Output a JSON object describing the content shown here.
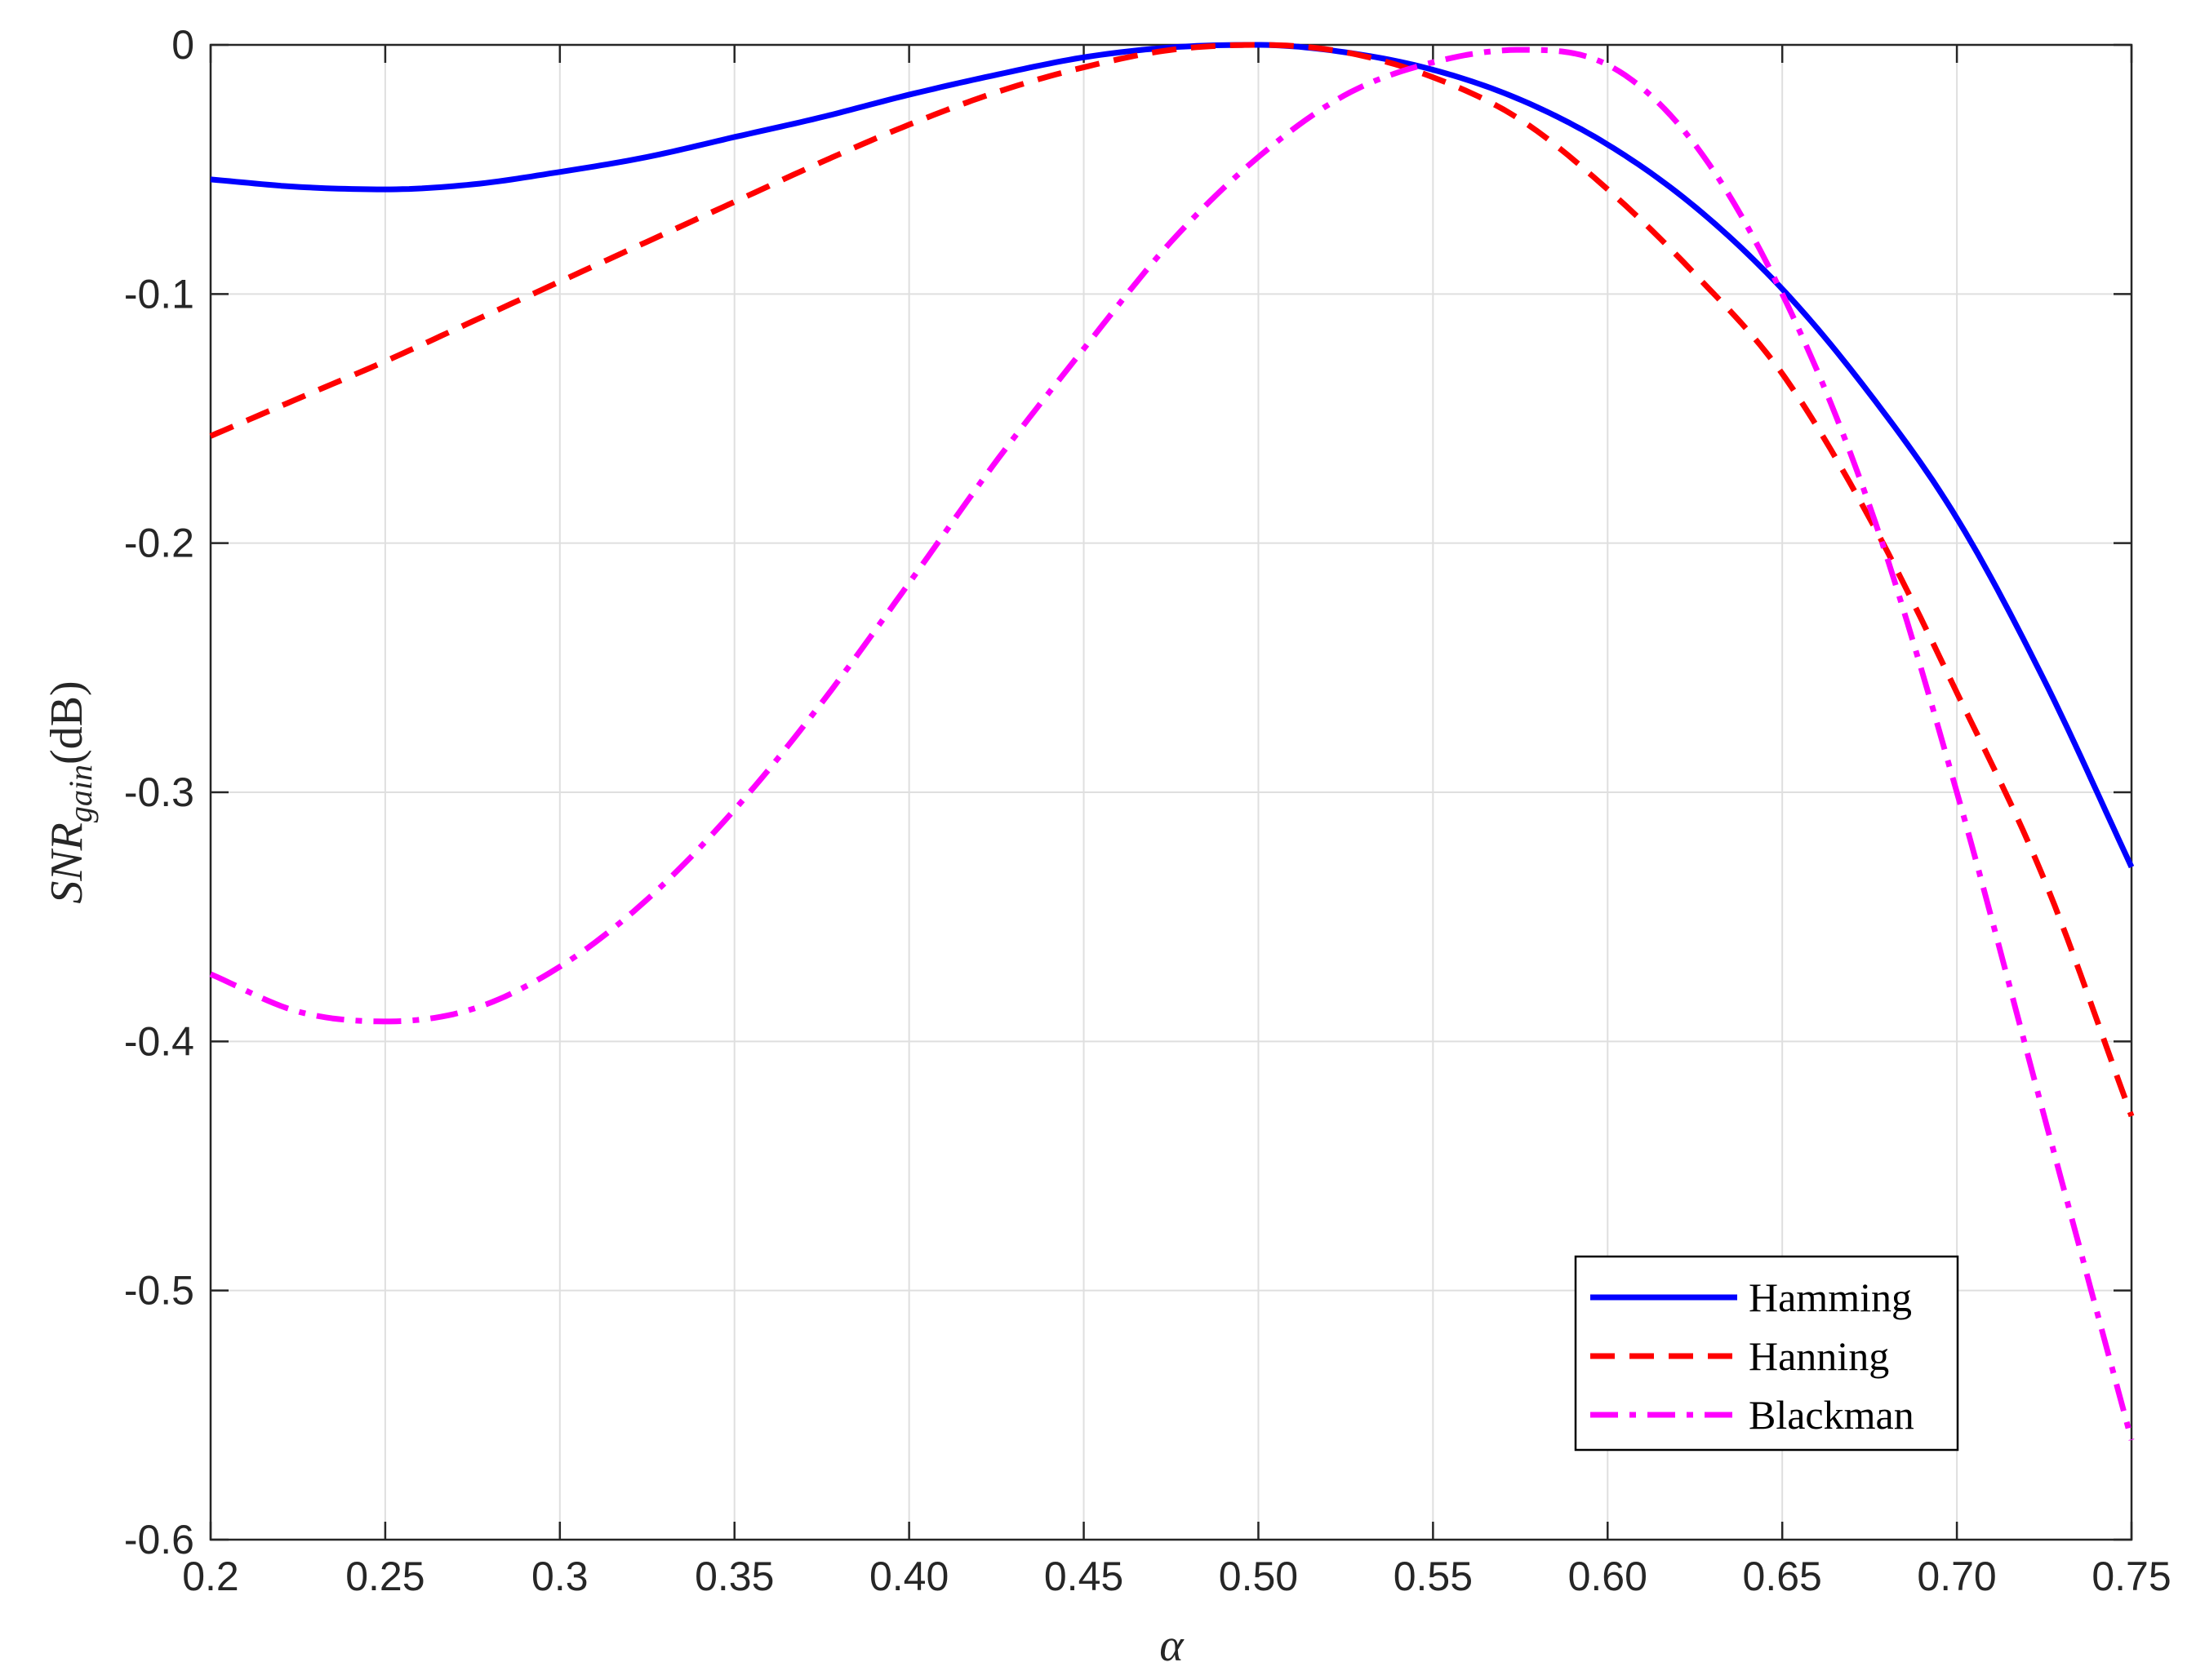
{
  "chart_data": {
    "type": "line",
    "title": "",
    "xlabel": "α",
    "ylabel": {
      "main": "SNR",
      "subscript": "gain",
      "unit": "(dB)"
    },
    "xlim": [
      0.2,
      0.75
    ],
    "ylim": [
      -0.6,
      0
    ],
    "grid": true,
    "legend_position": "bottom-right",
    "x_ticks": [
      0.2,
      0.25,
      0.3,
      0.35,
      0.4,
      0.45,
      0.5,
      0.55,
      0.6,
      0.65,
      0.7,
      0.75
    ],
    "x_tick_labels": [
      "0.2",
      "0.25",
      "0.3",
      "0.35",
      "0.40",
      "0.45",
      "0.50",
      "0.55",
      "0.60",
      "0.65",
      "0.70",
      "0.75"
    ],
    "y_ticks": [
      0,
      -0.1,
      -0.2,
      -0.3,
      -0.4,
      -0.5,
      -0.6
    ],
    "y_tick_labels": [
      "0",
      "-0.1",
      "-0.2",
      "-0.3",
      "-0.4",
      "-0.5",
      "-0.6"
    ],
    "series": [
      {
        "name": "Hamming",
        "color": "#0000ff",
        "style": "solid",
        "x": [
          0.2,
          0.225,
          0.25,
          0.275,
          0.3,
          0.325,
          0.35,
          0.375,
          0.4,
          0.425,
          0.45,
          0.475,
          0.5,
          0.525,
          0.55,
          0.575,
          0.6,
          0.625,
          0.65,
          0.675,
          0.7,
          0.725,
          0.75
        ],
        "y": [
          -0.054,
          -0.057,
          -0.058,
          -0.056,
          -0.051,
          -0.045,
          -0.037,
          -0.029,
          -0.02,
          -0.012,
          -0.005,
          -0.001,
          0,
          -0.003,
          -0.01,
          -0.022,
          -0.04,
          -0.065,
          -0.098,
          -0.14,
          -0.19,
          -0.255,
          -0.33
        ]
      },
      {
        "name": "Hanning",
        "color": "#ff0000",
        "style": "dashed",
        "x": [
          0.2,
          0.225,
          0.25,
          0.275,
          0.3,
          0.325,
          0.35,
          0.375,
          0.4,
          0.425,
          0.45,
          0.475,
          0.5,
          0.525,
          0.55,
          0.575,
          0.6,
          0.625,
          0.65,
          0.675,
          0.7,
          0.725,
          0.75
        ],
        "y": [
          -0.157,
          -0.142,
          -0.127,
          -0.111,
          -0.095,
          -0.079,
          -0.063,
          -0.047,
          -0.032,
          -0.019,
          -0.009,
          -0.002,
          0,
          -0.003,
          -0.013,
          -0.03,
          -0.058,
          -0.092,
          -0.132,
          -0.19,
          -0.26,
          -0.335,
          -0.43
        ]
      },
      {
        "name": "Blackman",
        "color": "#ff00ff",
        "style": "dashdot",
        "x": [
          0.2,
          0.225,
          0.25,
          0.275,
          0.3,
          0.325,
          0.35,
          0.375,
          0.4,
          0.425,
          0.45,
          0.475,
          0.5,
          0.525,
          0.55,
          0.575,
          0.6,
          0.625,
          0.65,
          0.675,
          0.7,
          0.725,
          0.75
        ],
        "y": [
          -0.373,
          -0.388,
          -0.392,
          -0.387,
          -0.37,
          -0.343,
          -0.307,
          -0.264,
          -0.216,
          -0.167,
          -0.122,
          -0.079,
          -0.045,
          -0.02,
          -0.007,
          -0.002,
          -0.008,
          -0.04,
          -0.1,
          -0.185,
          -0.3,
          -0.43,
          -0.56
        ]
      }
    ]
  }
}
